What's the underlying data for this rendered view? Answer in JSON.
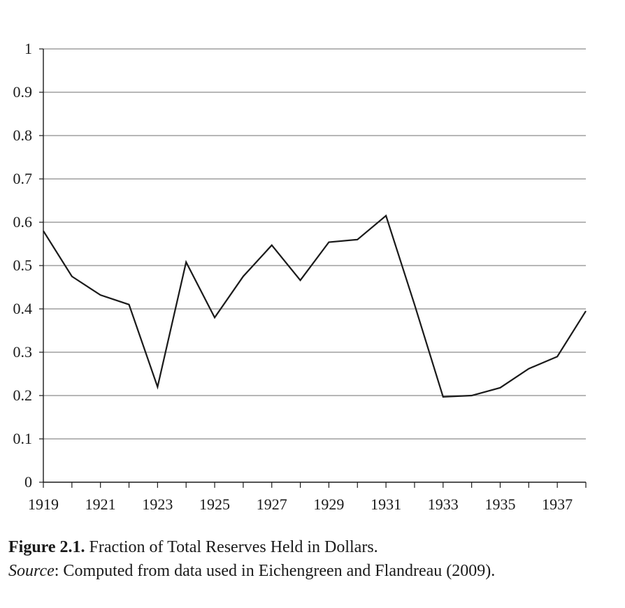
{
  "chart_data": {
    "type": "line",
    "title": "",
    "xlabel": "",
    "ylabel": "",
    "x": [
      1919,
      1920,
      1921,
      1922,
      1923,
      1924,
      1925,
      1926,
      1927,
      1928,
      1929,
      1930,
      1931,
      1932,
      1933,
      1934,
      1935,
      1936,
      1937,
      1938
    ],
    "series": [
      {
        "name": "Fraction of Total Reserves Held in Dollars",
        "values": [
          0.58,
          0.475,
          0.432,
          0.41,
          0.22,
          0.508,
          0.38,
          0.475,
          0.547,
          0.466,
          0.554,
          0.56,
          0.615,
          0.41,
          0.197,
          0.2,
          0.218,
          0.262,
          0.29,
          0.395
        ]
      }
    ],
    "xlim": [
      1919,
      1938
    ],
    "ylim": [
      0,
      1
    ],
    "x_tick_labels": [
      "1919",
      "1921",
      "1923",
      "1925",
      "1927",
      "1929",
      "1931",
      "1933",
      "1935",
      "1937"
    ],
    "y_tick_labels": [
      "0",
      "0.1",
      "0.2",
      "0.3",
      "0.4",
      "0.5",
      "0.6",
      "0.7",
      "0.8",
      "0.9",
      "1"
    ],
    "grid": true,
    "line_color": "#1a1a1a",
    "grid_color": "#8c8c8c"
  },
  "caption": {
    "label": "Figure 2.1.",
    "title": " Fraction of Total Reserves Held in Dollars.",
    "source_label": "Source",
    "source_text": ": Computed from data used in Eichengreen and Flandreau (2009)."
  }
}
